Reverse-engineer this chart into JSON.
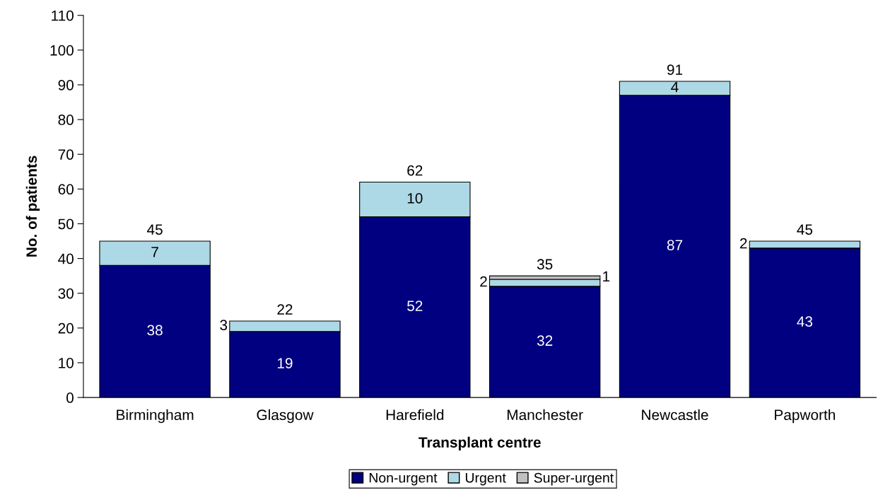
{
  "chart_data": {
    "type": "bar",
    "stacked": true,
    "xlabel": "Transplant centre",
    "ylabel": "No. of patients",
    "categories": [
      "Birmingham",
      "Glasgow",
      "Harefield",
      "Manchester",
      "Newcastle",
      "Papworth"
    ],
    "series": [
      {
        "name": "Non-urgent",
        "color": "#000080",
        "values": [
          38,
          19,
          52,
          32,
          87,
          43
        ],
        "value_labels": [
          "38",
          "19",
          "52",
          "32",
          "87",
          "43"
        ]
      },
      {
        "name": "Urgent",
        "color": "#add8e6",
        "values": [
          7,
          3,
          10,
          2,
          4,
          2
        ],
        "value_labels": [
          "7",
          "3",
          "10",
          "2",
          "4",
          "2"
        ]
      },
      {
        "name": "Super-urgent",
        "color": "#c0c0c0",
        "values": [
          0,
          0,
          0,
          1,
          0,
          0
        ],
        "value_labels": [
          null,
          null,
          null,
          "1",
          null,
          null
        ]
      }
    ],
    "totals": [
      "45",
      "22",
      "62",
      "35",
      "91",
      "45"
    ],
    "ylim": [
      0,
      110
    ],
    "yticks": [
      0,
      10,
      20,
      30,
      40,
      50,
      60,
      70,
      80,
      90,
      100,
      110
    ],
    "grid": false,
    "legend": "bottom"
  }
}
